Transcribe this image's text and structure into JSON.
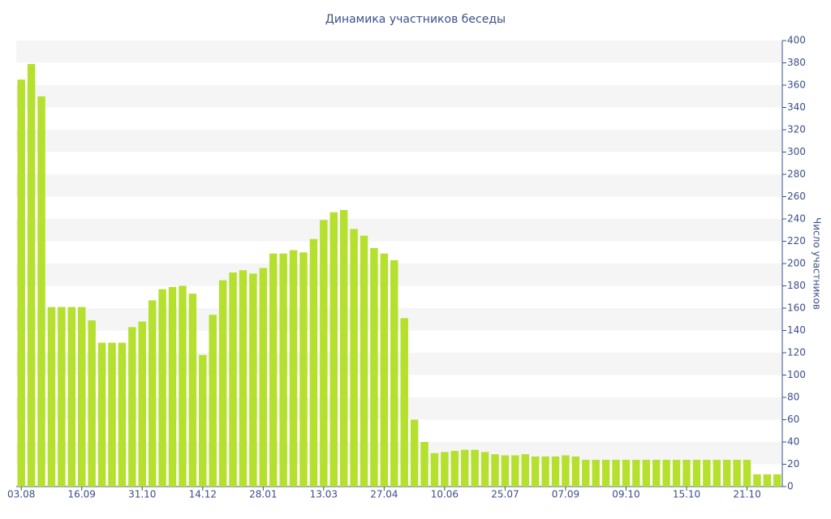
{
  "chart_data": {
    "type": "bar",
    "title": "Динамика участников беседы",
    "y_label": "Число участников",
    "categories": [
      "03.08",
      null,
      null,
      null,
      null,
      null,
      "16.09",
      null,
      null,
      null,
      null,
      null,
      "31.10",
      null,
      null,
      null,
      null,
      null,
      "14.12",
      null,
      null,
      null,
      null,
      null,
      "28.01",
      null,
      null,
      null,
      null,
      null,
      "13.03",
      null,
      null,
      null,
      null,
      null,
      "27.04",
      null,
      null,
      null,
      null,
      null,
      "10.06",
      null,
      null,
      null,
      null,
      null,
      "25.07",
      null,
      null,
      null,
      null,
      null,
      "07.09",
      null,
      null,
      null,
      null,
      null,
      "09.10",
      null,
      null,
      null,
      null,
      null,
      "15.10",
      null,
      null,
      null,
      null,
      null,
      "21.10",
      null,
      null,
      null
    ],
    "values": [
      365,
      379,
      350,
      161,
      161,
      161,
      161,
      149,
      129,
      129,
      129,
      143,
      148,
      167,
      177,
      179,
      180,
      173,
      118,
      154,
      185,
      192,
      194,
      191,
      196,
      209,
      209,
      212,
      210,
      222,
      239,
      246,
      248,
      231,
      225,
      214,
      209,
      203,
      151,
      60,
      40,
      30,
      31,
      32,
      33,
      33,
      31,
      29,
      28,
      28,
      29,
      27,
      27,
      27,
      28,
      27,
      24,
      24,
      24,
      24,
      24,
      24,
      24,
      24,
      24,
      24,
      24,
      24,
      24,
      24,
      24,
      24,
      24,
      11,
      11,
      11
    ],
    "color": "#b5e02e",
    "ylim": [
      0,
      400
    ],
    "yticks": [
      0,
      20,
      40,
      60,
      80,
      100,
      120,
      140,
      160,
      180,
      200,
      220,
      240,
      260,
      280,
      300,
      320,
      340,
      360,
      380,
      400
    ],
    "grid": true
  }
}
